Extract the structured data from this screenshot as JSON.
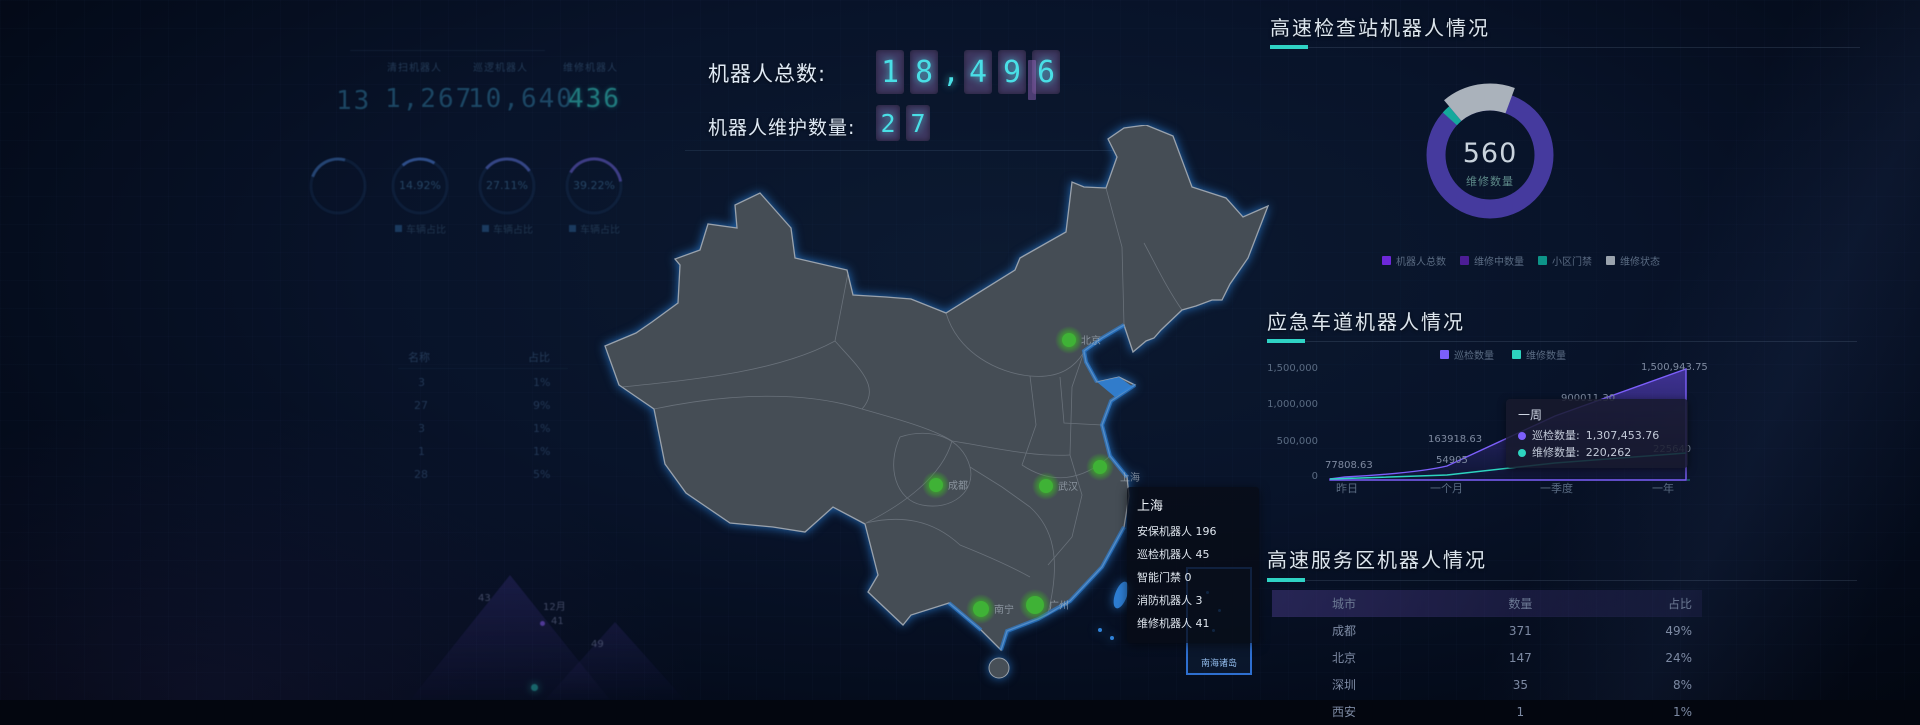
{
  "header": {
    "total_label": "机器人总数:",
    "total_value": "18,496",
    "maint_label": "机器人维护数量:",
    "maint_value": "27"
  },
  "left_stats": {
    "partial_value": "13",
    "columns": [
      {
        "label": "清扫机器人",
        "value": "1,267"
      },
      {
        "label": "巡逻机器人",
        "value": "10,640"
      },
      {
        "label": "维修机器人",
        "value": "436"
      }
    ]
  },
  "left_gauges": {
    "items": [
      {
        "percent": "14.92%",
        "legend": "车辆占比"
      },
      {
        "percent": "27.11%",
        "legend": "车辆占比"
      },
      {
        "percent": "39.22%",
        "legend": "车辆占比"
      }
    ]
  },
  "left_table": {
    "headers": [
      "名称",
      "占比"
    ],
    "rows": [
      [
        "3",
        "1%"
      ],
      [
        "27",
        "9%"
      ],
      [
        "3",
        "1%"
      ],
      [
        "1",
        "1%"
      ],
      [
        "28",
        "5%"
      ]
    ]
  },
  "left_chart": {
    "label_a": "43",
    "month": "12月",
    "value": "41",
    "label_b": "49"
  },
  "checkpoint_panel": {
    "title": "高速检查站机器人情况",
    "donut_center_value": "560",
    "donut_center_label": "维修数量",
    "legend": [
      {
        "label": "机器人总数",
        "color": "#6d28d9"
      },
      {
        "label": "维修中数量",
        "color": "#4c1d95"
      },
      {
        "label": "小区门禁",
        "color": "#0d9488"
      },
      {
        "label": "维修状态",
        "color": "#9aa3ad"
      }
    ]
  },
  "lane_panel": {
    "title": "应急车道机器人情况",
    "legend": [
      {
        "label": "巡检数量",
        "color": "#7c5ffb"
      },
      {
        "label": "维修数量",
        "color": "#2dd4bf"
      }
    ],
    "y_ticks": [
      "1,500,000",
      "1,000,000",
      "500,000",
      "0"
    ],
    "x_ticks": [
      "昨日",
      "一个月",
      "一季度",
      "一年"
    ],
    "point_labels": {
      "p1": "77808.63",
      "p2": "163918.63",
      "p3": "54905",
      "p4": "900011.30",
      "p5": "1,500,943.75",
      "p6": "225640"
    },
    "tooltip": {
      "title": "一周",
      "rows": [
        {
          "name": "巡检数量:",
          "value": "1,307,453.76"
        },
        {
          "name": "维修数量:",
          "value": "220,262"
        }
      ]
    }
  },
  "service_panel": {
    "title": "高速服务区机器人情况",
    "headers": [
      "城市",
      "数量",
      "占比"
    ],
    "rows": [
      [
        "成都",
        "371",
        "49%"
      ],
      [
        "北京",
        "147",
        "24%"
      ],
      [
        "深圳",
        "35",
        "8%"
      ],
      [
        "西安",
        "1",
        "1%"
      ]
    ]
  },
  "map": {
    "tooltip": {
      "title": "上海",
      "lines": [
        "安保机器人 196",
        "巡检机器人 45",
        "智能门禁 0",
        "消防机器人 3",
        "维修机器人 41"
      ]
    },
    "inset_label": "南海诸岛",
    "markers": [
      {
        "city": "北京"
      },
      {
        "city": "成都"
      },
      {
        "city": "武汉"
      },
      {
        "city": "上海"
      },
      {
        "city": "南宁"
      },
      {
        "city": "广州"
      }
    ]
  },
  "colors": {
    "accent_teal": "#2fd3c5",
    "digit_teal": "#49dfe6",
    "marker_green": "#3fb236",
    "donut_purple": "#453a9e",
    "map_glow": "#2b7fd6"
  },
  "chart_data": [
    {
      "type": "pie",
      "title": "高速检查站机器人情况",
      "center_value": 560,
      "center_label": "维修数量",
      "slices": [
        {
          "name": "机器人总数",
          "value": 87,
          "color": "#453a9e"
        },
        {
          "name": "维修状态",
          "value": 10,
          "color": "#aab2bb"
        },
        {
          "name": "小区门禁",
          "value": 3,
          "color": "#15a99c"
        }
      ],
      "legend_position": "bottom"
    },
    {
      "type": "area",
      "title": "应急车道机器人情况",
      "x": [
        "昨日",
        "一个月",
        "一季度",
        "一年"
      ],
      "series": [
        {
          "name": "巡检数量",
          "values": [
            77808.63,
            163918.63,
            900011.3,
            1500943.75
          ]
        },
        {
          "name": "维修数量",
          "values": [
            20000,
            54905,
            225640,
            280000
          ]
        }
      ],
      "ylim": [
        0,
        1500000
      ],
      "grid": false,
      "tooltip_point": {
        "x": "一周",
        "巡检数量": 1307453.76,
        "维修数量": 220262
      }
    },
    {
      "type": "gauge",
      "title": "车辆占比",
      "values": [
        "14.92%",
        "27.11%",
        "39.22%"
      ]
    },
    {
      "type": "table",
      "title": "高速服务区机器人情况",
      "headers": [
        "城市",
        "数量",
        "占比"
      ],
      "rows": [
        [
          "成都",
          371,
          "49%"
        ],
        [
          "北京",
          147,
          "24%"
        ],
        [
          "深圳",
          35,
          "8%"
        ],
        [
          "西安",
          1,
          "1%"
        ]
      ]
    }
  ]
}
